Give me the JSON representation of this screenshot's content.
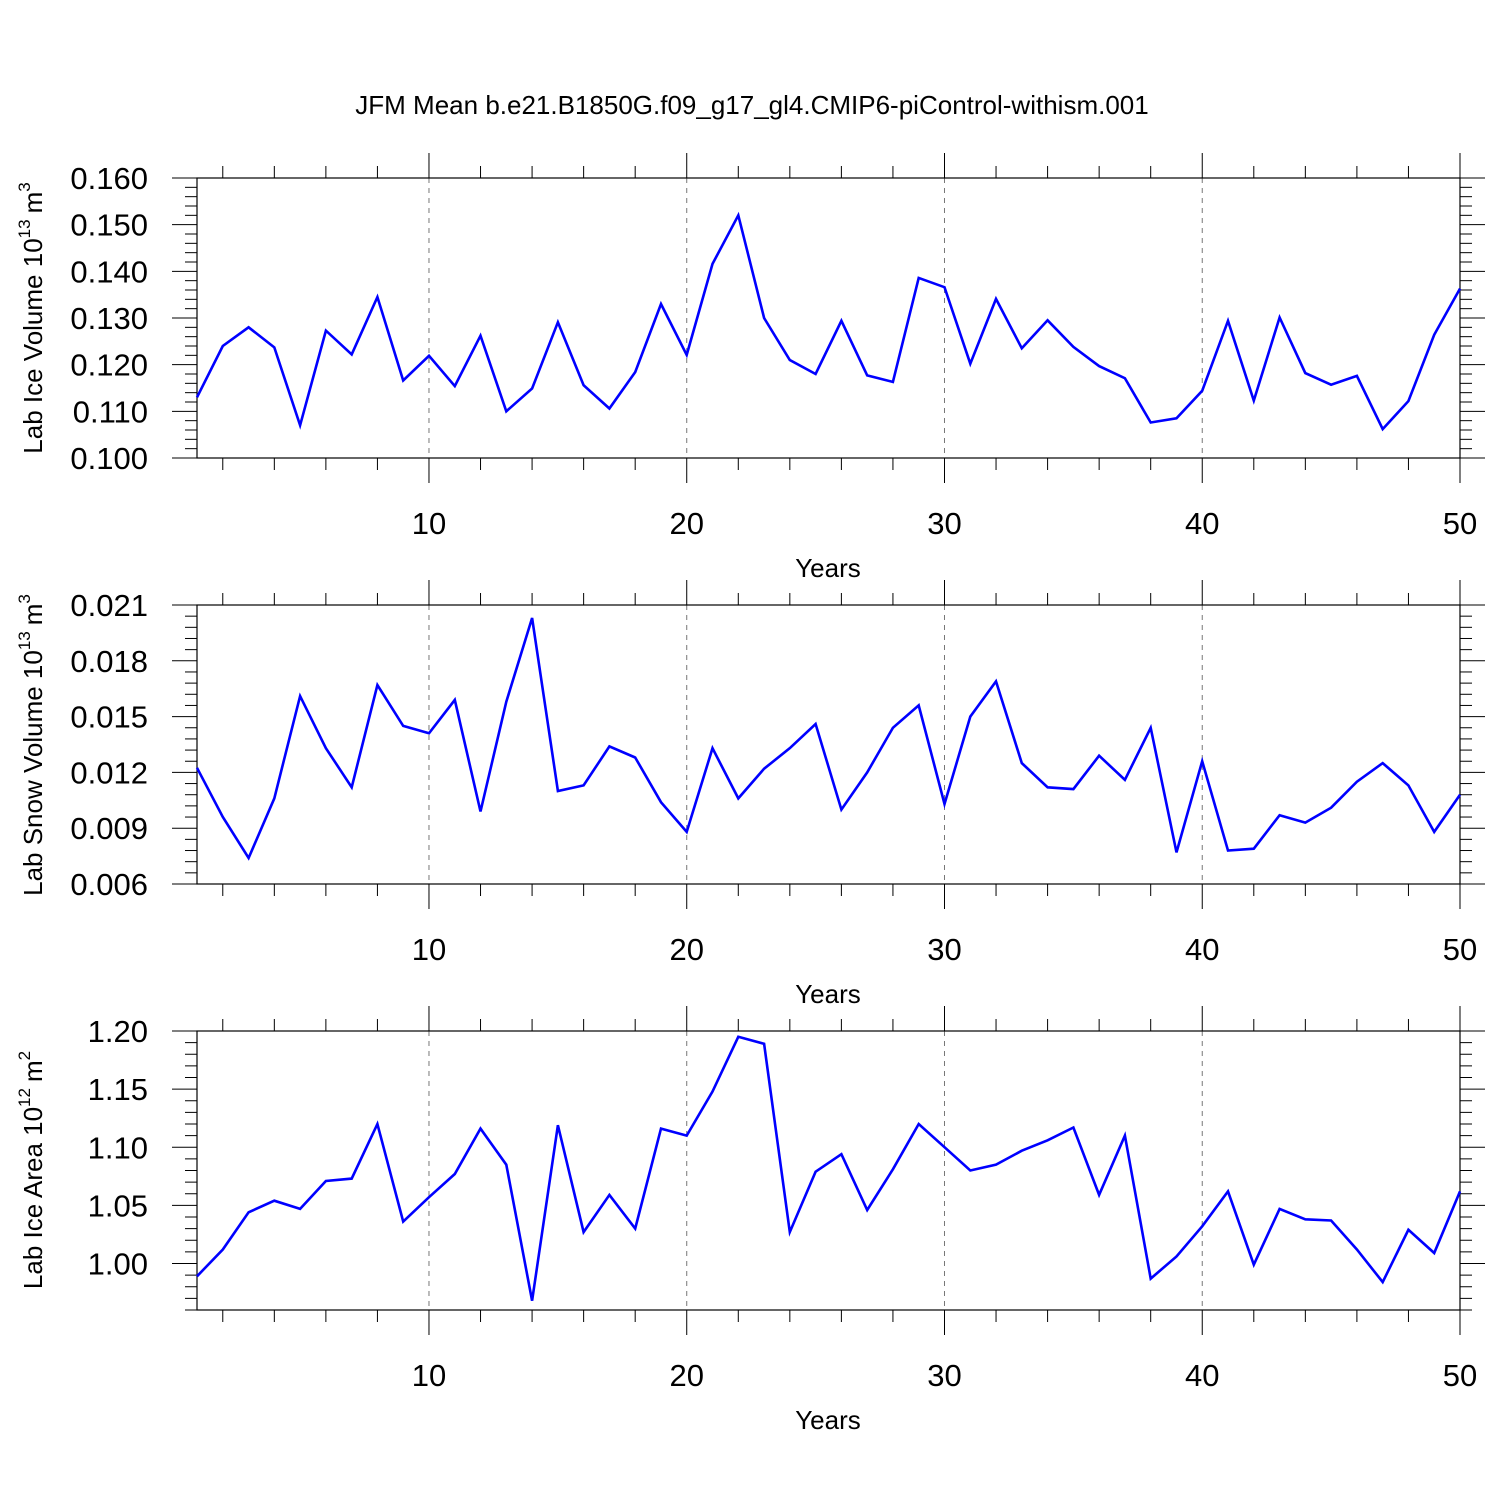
{
  "title": "JFM Mean b.e21.B1850G.f09_g17_gl4.CMIP6-piControl-withism.001",
  "line_color": "#0000ff",
  "chart_data": [
    {
      "type": "line",
      "ylabel": "Lab Ice Volume 10",
      "ylabel_exp": "13",
      "ylabel_unit": "m",
      "ylabel_unit_exp": "3",
      "xlabel": "Years",
      "xlim": [
        1,
        50
      ],
      "ylim": [
        0.1,
        0.16
      ],
      "x_major_ticks": [
        10,
        20,
        30,
        40,
        50
      ],
      "x_tick_labels": [
        "10",
        "20",
        "30",
        "40",
        "50"
      ],
      "x_minor_step": 2,
      "y_major_ticks": [
        0.1,
        0.11,
        0.12,
        0.13,
        0.14,
        0.15,
        0.16
      ],
      "y_tick_labels": [
        "0.100",
        "0.110",
        "0.120",
        "0.130",
        "0.140",
        "0.150",
        "0.160"
      ],
      "y_minor_step": 0.002,
      "grid_x": [
        10,
        20,
        30,
        40
      ],
      "x": [
        1,
        2,
        3,
        4,
        5,
        6,
        7,
        8,
        9,
        10,
        11,
        12,
        13,
        14,
        15,
        16,
        17,
        18,
        19,
        20,
        21,
        22,
        23,
        24,
        25,
        26,
        27,
        28,
        29,
        30,
        31,
        32,
        33,
        34,
        35,
        36,
        37,
        38,
        39,
        40,
        41,
        42,
        43,
        44,
        45,
        46,
        47,
        48,
        49,
        50
      ],
      "values": [
        0.113,
        0.124,
        0.128,
        0.1237,
        0.107,
        0.1273,
        0.1222,
        0.1345,
        0.1166,
        0.1219,
        0.1154,
        0.1262,
        0.11,
        0.1149,
        0.1291,
        0.1156,
        0.1106,
        0.1184,
        0.133,
        0.1221,
        0.1416,
        0.152,
        0.13,
        0.121,
        0.118,
        0.1294,
        0.1177,
        0.1163,
        0.1386,
        0.1366,
        0.1202,
        0.1341,
        0.1235,
        0.1295,
        0.1238,
        0.1197,
        0.1171,
        0.1076,
        0.1085,
        0.1144,
        0.1294,
        0.1123,
        0.1301,
        0.1182,
        0.1157,
        0.1176,
        0.1062,
        0.1122,
        0.1264,
        0.1363
      ]
    },
    {
      "type": "line",
      "ylabel": "Lab Snow Volume 10",
      "ylabel_exp": "13",
      "ylabel_unit": "m",
      "ylabel_unit_exp": "3",
      "xlabel": "Years",
      "xlim": [
        1,
        50
      ],
      "ylim": [
        0.006,
        0.021
      ],
      "x_major_ticks": [
        10,
        20,
        30,
        40,
        50
      ],
      "x_tick_labels": [
        "10",
        "20",
        "30",
        "40",
        "50"
      ],
      "x_minor_step": 2,
      "y_major_ticks": [
        0.006,
        0.009,
        0.012,
        0.015,
        0.018,
        0.021
      ],
      "y_tick_labels": [
        "0.006",
        "0.009",
        "0.012",
        "0.015",
        "0.018",
        "0.021"
      ],
      "y_minor_step": 0.0006,
      "grid_x": [
        10,
        20,
        30,
        40
      ],
      "x": [
        1,
        2,
        3,
        4,
        5,
        6,
        7,
        8,
        9,
        10,
        11,
        12,
        13,
        14,
        15,
        16,
        17,
        18,
        19,
        20,
        21,
        22,
        23,
        24,
        25,
        26,
        27,
        28,
        29,
        30,
        31,
        32,
        33,
        34,
        35,
        36,
        37,
        38,
        39,
        40,
        41,
        42,
        43,
        44,
        45,
        46,
        47,
        48,
        49,
        50
      ],
      "values": [
        0.01225,
        0.0096,
        0.0074,
        0.0106,
        0.0161,
        0.0133,
        0.0112,
        0.0167,
        0.0145,
        0.0141,
        0.0159,
        0.0099,
        0.0158,
        0.0203,
        0.011,
        0.0113,
        0.0134,
        0.0128,
        0.0104,
        0.0088,
        0.0133,
        0.0106,
        0.0122,
        0.0133,
        0.0146,
        0.01,
        0.012,
        0.0144,
        0.0156,
        0.0103,
        0.015,
        0.0169,
        0.0125,
        0.0112,
        0.0111,
        0.0129,
        0.0116,
        0.0144,
        0.0077,
        0.0126,
        0.0078,
        0.0079,
        0.0097,
        0.0093,
        0.0101,
        0.0115,
        0.0125,
        0.0113,
        0.0088,
        0.0108
      ]
    },
    {
      "type": "line",
      "ylabel": "Lab Ice Area 10",
      "ylabel_exp": "12",
      "ylabel_unit": "m",
      "ylabel_unit_exp": "2",
      "xlabel": "Years",
      "xlim": [
        1,
        50
      ],
      "ylim": [
        0.96,
        1.2
      ],
      "x_major_ticks": [
        10,
        20,
        30,
        40,
        50
      ],
      "x_tick_labels": [
        "10",
        "20",
        "30",
        "40",
        "50"
      ],
      "x_minor_step": 2,
      "y_major_ticks": [
        1.0,
        1.05,
        1.1,
        1.15,
        1.2
      ],
      "y_tick_labels": [
        "1.00",
        "1.05",
        "1.10",
        "1.15",
        "1.20"
      ],
      "y_minor_step": 0.01,
      "grid_x": [
        10,
        20,
        30,
        40
      ],
      "x": [
        1,
        2,
        3,
        4,
        5,
        6,
        7,
        8,
        9,
        10,
        11,
        12,
        13,
        14,
        15,
        16,
        17,
        18,
        19,
        20,
        21,
        22,
        23,
        24,
        25,
        26,
        27,
        28,
        29,
        30,
        31,
        32,
        33,
        34,
        35,
        36,
        37,
        38,
        39,
        40,
        41,
        42,
        43,
        44,
        45,
        46,
        47,
        48,
        49,
        50
      ],
      "values": [
        0.989,
        1.012,
        1.044,
        1.054,
        1.047,
        1.071,
        1.073,
        1.12,
        1.036,
        1.057,
        1.077,
        1.116,
        1.085,
        0.968,
        1.119,
        1.027,
        1.059,
        1.03,
        1.116,
        1.11,
        1.148,
        1.195,
        1.189,
        1.027,
        1.079,
        1.094,
        1.046,
        1.081,
        1.12,
        1.1,
        1.08,
        1.085,
        1.097,
        1.106,
        1.117,
        1.059,
        1.11,
        0.987,
        1.006,
        1.032,
        1.062,
        0.999,
        1.047,
        1.038,
        1.037,
        1.012,
        0.984,
        1.029,
        1.009,
        1.062
      ]
    }
  ]
}
